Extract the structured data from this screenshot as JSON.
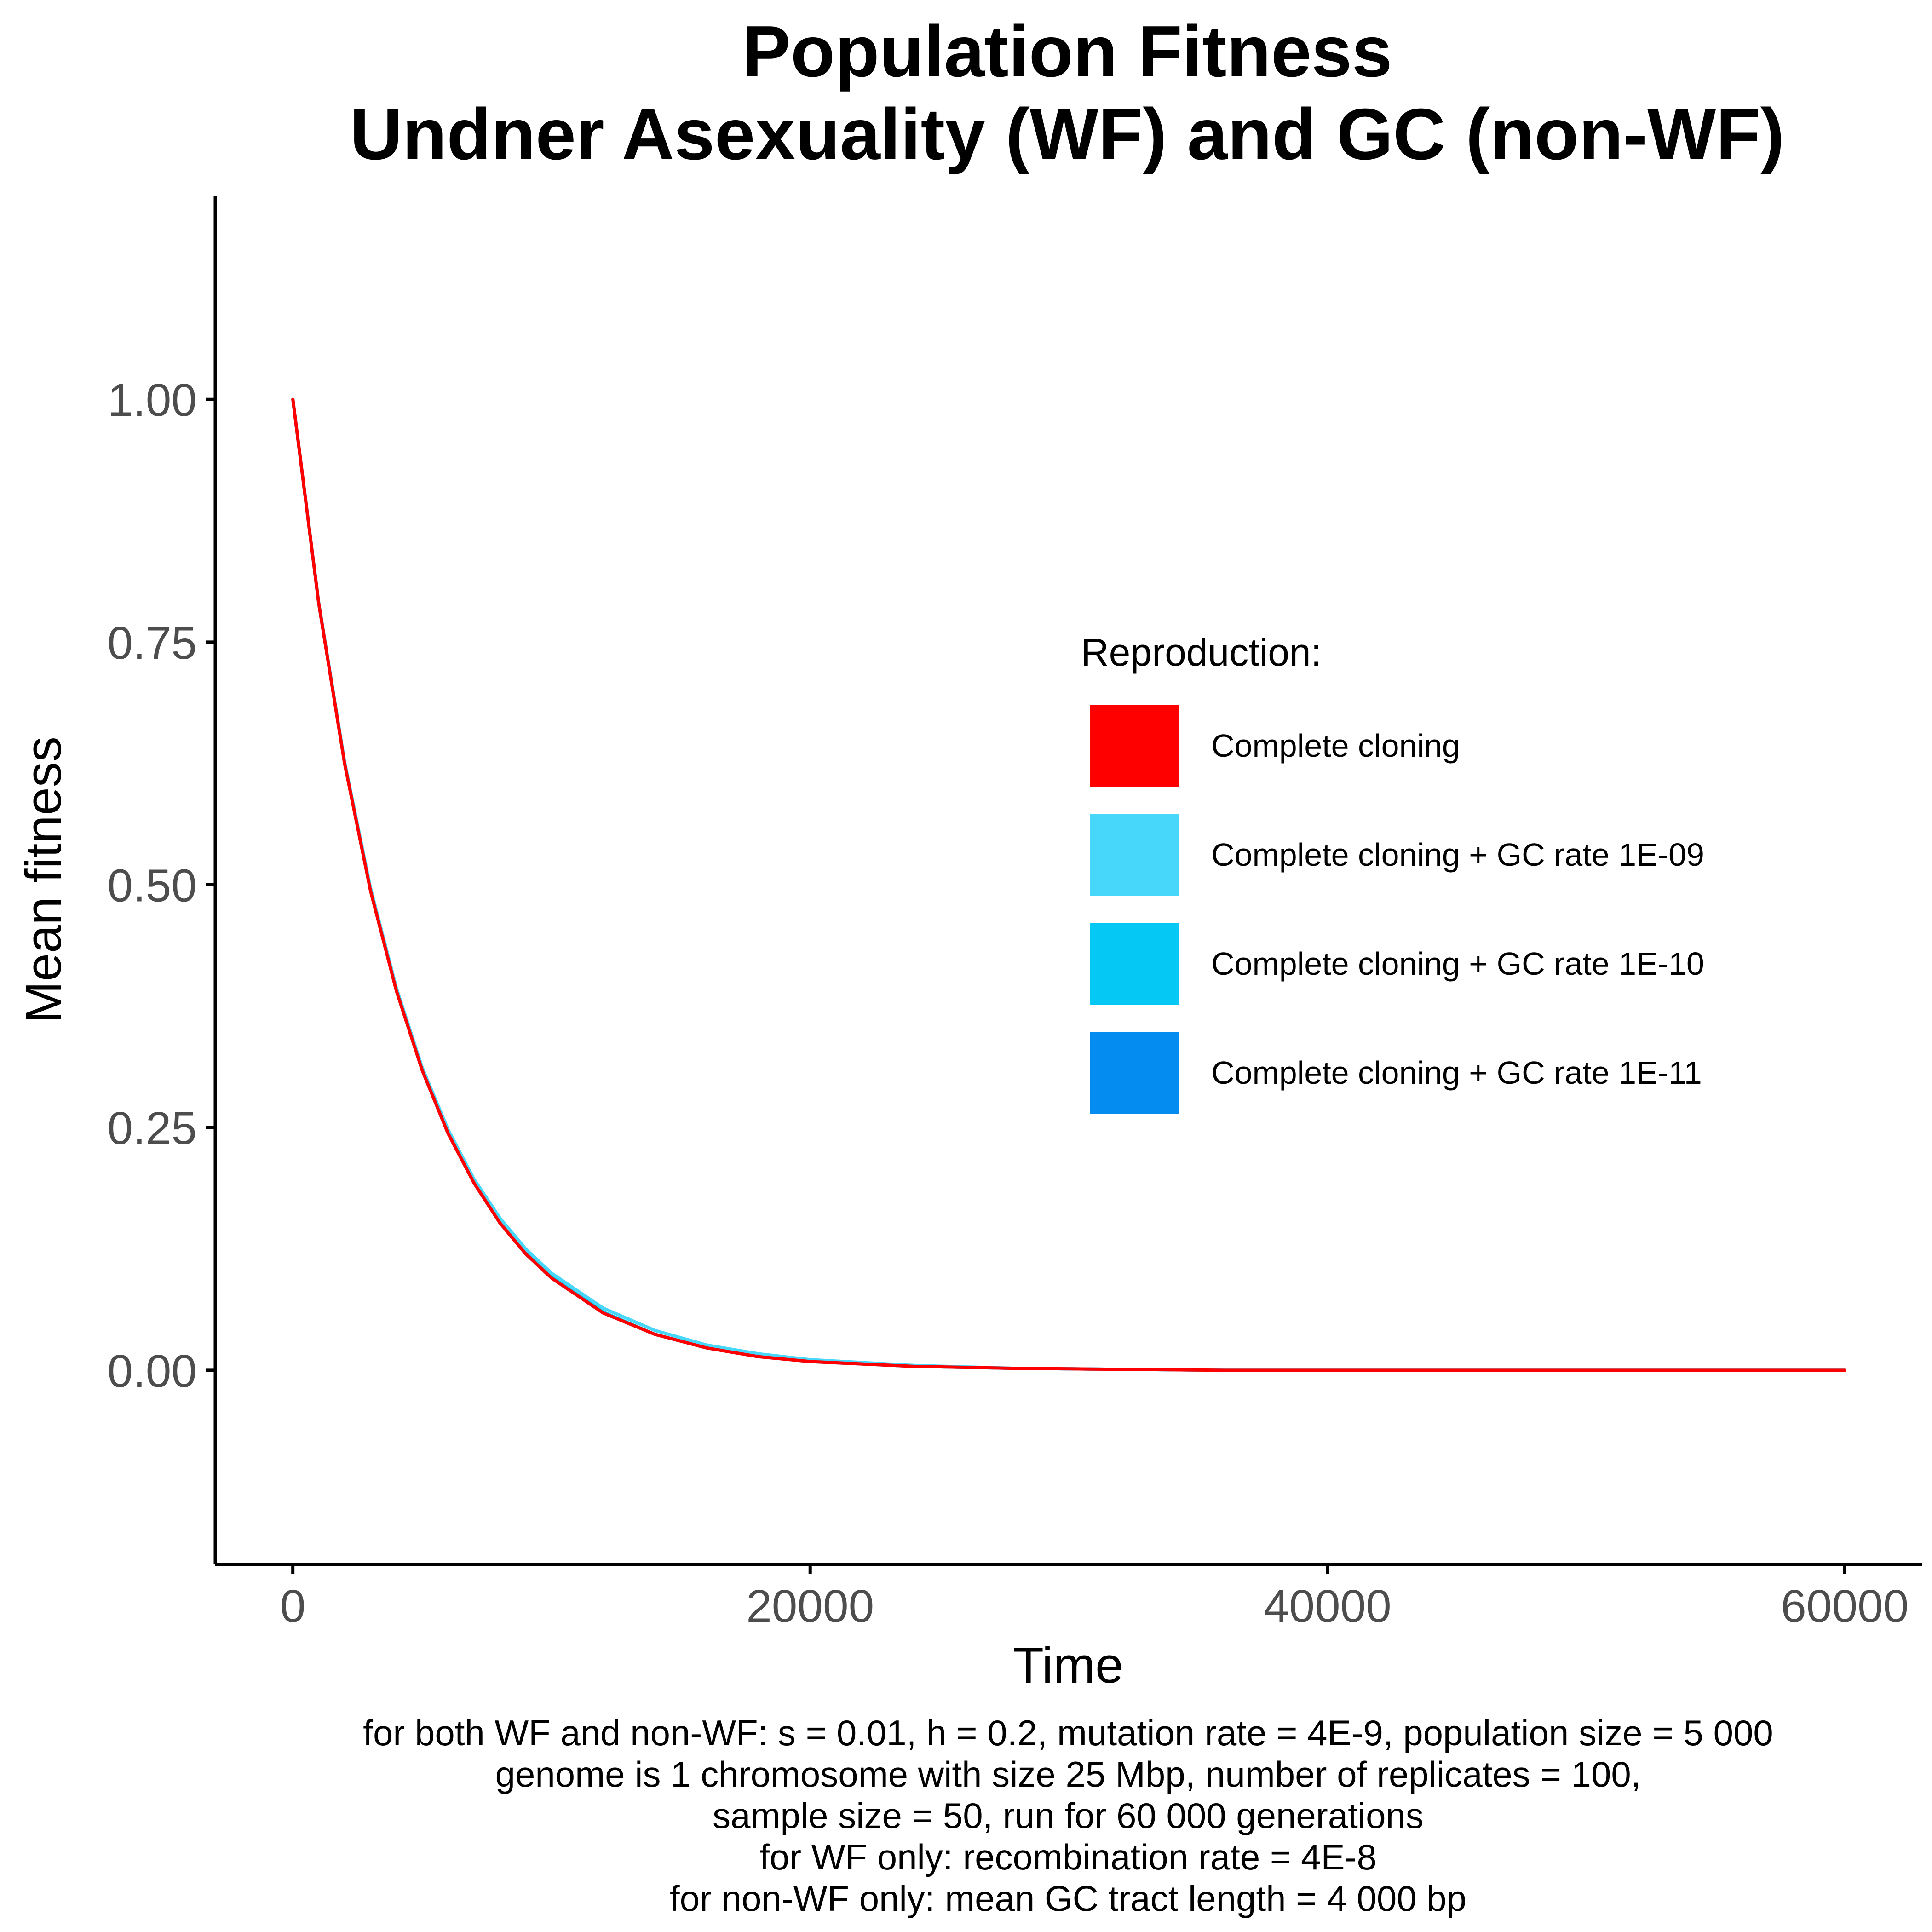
{
  "chart_data": {
    "type": "line",
    "title_lines": [
      "Population Fitness",
      "Undner Asexuality (WF) and GC (non-WF)"
    ],
    "xlabel": "Time",
    "ylabel": "Mean fitness",
    "xlim": [
      -3000,
      63000
    ],
    "ylim": [
      -0.2,
      1.21
    ],
    "x_ticks": [
      0,
      20000,
      40000,
      60000
    ],
    "x_tick_labels": [
      "0",
      "20000",
      "40000",
      "60000"
    ],
    "y_ticks": [
      0,
      0.25,
      0.5,
      0.75,
      1.0
    ],
    "y_tick_labels": [
      "0.00",
      "0.25",
      "0.50",
      "0.75",
      "1.00"
    ],
    "grid": false,
    "legend": {
      "title": "Reproduction:",
      "placement": "right-middle inside plot"
    },
    "series": [
      {
        "name": "Complete cloning + GC  rate 1E-11",
        "color": "#058cf0",
        "x": [
          0,
          1000,
          2000,
          3000,
          4000,
          5000,
          6000,
          7000,
          8000,
          9000,
          10000,
          12000,
          14000,
          16000,
          18000,
          20000,
          24000,
          28000,
          32000,
          36000,
          40000,
          45000,
          50000,
          55000,
          60000
        ],
        "y": [
          1.0,
          0.79,
          0.626,
          0.495,
          0.392,
          0.309,
          0.244,
          0.193,
          0.152,
          0.12,
          0.095,
          0.059,
          0.037,
          0.023,
          0.014,
          0.009,
          0.004,
          0.002,
          0.001,
          0.0,
          0.0,
          0.0,
          0.0,
          0.0,
          0.0
        ]
      },
      {
        "name": "Complete cloning + GC  rate 1E-10",
        "color": "#05c8f5",
        "x": [
          0,
          1000,
          2000,
          3000,
          4000,
          5000,
          6000,
          7000,
          8000,
          9000,
          10000,
          12000,
          14000,
          16000,
          18000,
          20000,
          24000,
          28000,
          32000,
          36000,
          40000,
          45000,
          50000,
          55000,
          60000
        ],
        "y": [
          1.0,
          0.79,
          0.626,
          0.495,
          0.392,
          0.31,
          0.245,
          0.194,
          0.153,
          0.121,
          0.096,
          0.06,
          0.037,
          0.023,
          0.015,
          0.009,
          0.004,
          0.002,
          0.001,
          0.0,
          0.0,
          0.0,
          0.0,
          0.0,
          0.0
        ]
      },
      {
        "name": "Complete cloning + GC  rate 1E-09",
        "color": "#46d7fa",
        "x": [
          0,
          1000,
          2000,
          3000,
          4000,
          5000,
          6000,
          7000,
          8000,
          9000,
          10000,
          12000,
          14000,
          16000,
          18000,
          20000,
          24000,
          28000,
          32000,
          36000,
          40000,
          45000,
          50000,
          55000,
          60000
        ],
        "y": [
          1.0,
          0.791,
          0.627,
          0.497,
          0.394,
          0.312,
          0.248,
          0.197,
          0.157,
          0.125,
          0.1,
          0.064,
          0.041,
          0.026,
          0.017,
          0.011,
          0.005,
          0.002,
          0.001,
          0.0,
          0.0,
          0.0,
          0.0,
          0.0,
          0.0
        ]
      },
      {
        "name": "Complete cloning",
        "color": "#ff0000",
        "x": [
          0,
          1000,
          2000,
          3000,
          4000,
          5000,
          6000,
          7000,
          8000,
          9000,
          10000,
          12000,
          14000,
          16000,
          18000,
          20000,
          24000,
          28000,
          32000,
          36000,
          40000,
          45000,
          50000,
          55000,
          60000
        ],
        "y": [
          1.0,
          0.79,
          0.625,
          0.494,
          0.391,
          0.309,
          0.244,
          0.193,
          0.152,
          0.12,
          0.095,
          0.059,
          0.037,
          0.023,
          0.014,
          0.009,
          0.004,
          0.002,
          0.001,
          0.0,
          0.0,
          0.0,
          0.0,
          0.0,
          0.0
        ]
      }
    ],
    "legend_order": [
      {
        "name": "Complete cloning",
        "color": "#ff0000"
      },
      {
        "name": "Complete cloning + GC  rate 1E-09",
        "color": "#46d7fa"
      },
      {
        "name": "Complete cloning + GC  rate 1E-10",
        "color": "#05c8f5"
      },
      {
        "name": "Complete cloning + GC  rate 1E-11",
        "color": "#058cf0"
      }
    ],
    "caption_lines": [
      "for both WF and non-WF: s = 0.01, h = 0.2, mutation rate = 4E-9, population size = 5 000",
      "genome is 1 chromosome with size 25 Mbp, number of replicates = 100,",
      "sample size = 50, run for 60 000 generations",
      "for WF only: recombination rate = 4E-8",
      "for non-WF only: mean GC tract length = 4 000 bp"
    ]
  }
}
